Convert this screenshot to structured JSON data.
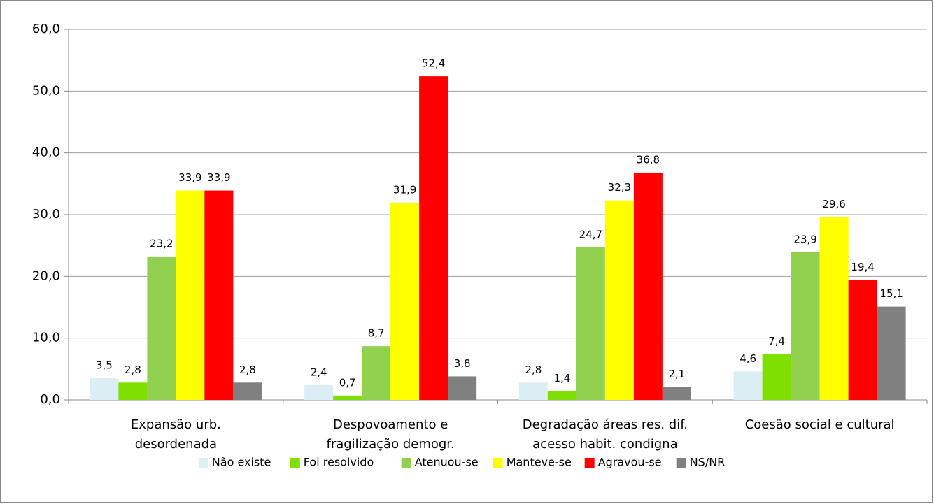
{
  "chart_data": {
    "type": "bar",
    "categories": [
      "Expansão urb.\ndesordenada",
      "Despovoamento e\nfragilização demogr.",
      "Degradação áreas res. dif.\nacesso habit. condigna",
      "Coesão social e cultural"
    ],
    "series": [
      {
        "name": "Não existe",
        "color": "#dbeef4",
        "values": [
          3.5,
          2.4,
          2.8,
          4.6
        ],
        "value_labels": [
          "3,5",
          "2,4",
          "2,8",
          "4,6"
        ]
      },
      {
        "name": "Foi resolvido",
        "color": "#7fe000",
        "values": [
          2.8,
          0.7,
          1.4,
          7.4
        ],
        "value_labels": [
          "2,8",
          "0,7",
          "1,4",
          "7,4"
        ]
      },
      {
        "name": "Atenuou-se",
        "color": "#92d050",
        "values": [
          23.2,
          8.7,
          24.7,
          23.9
        ],
        "value_labels": [
          "23,2",
          "8,7",
          "24,7",
          "23,9"
        ]
      },
      {
        "name": "Manteve-se",
        "color": "#ffff00",
        "values": [
          33.9,
          31.9,
          32.3,
          29.6
        ],
        "value_labels": [
          "33,9",
          "31,9",
          "32,3",
          "29,6"
        ]
      },
      {
        "name": "Agravou-se",
        "color": "#ff0000",
        "values": [
          33.9,
          52.4,
          36.8,
          19.4
        ],
        "value_labels": [
          "33,9",
          "52,4",
          "36,8",
          "19,4"
        ]
      },
      {
        "name": "NS/NR",
        "color": "#808080",
        "values": [
          2.8,
          3.8,
          2.1,
          15.1
        ],
        "value_labels": [
          "2,8",
          "3,8",
          "2,1",
          "15,1"
        ]
      }
    ],
    "ylim": [
      0,
      60
    ],
    "yticks": [
      {
        "value": 0,
        "label": "0,0"
      },
      {
        "value": 10,
        "label": "10,0"
      },
      {
        "value": 20,
        "label": "20,0"
      },
      {
        "value": 30,
        "label": "30,0"
      },
      {
        "value": 40,
        "label": "40,0"
      },
      {
        "value": 50,
        "label": "50,0"
      },
      {
        "value": 60,
        "label": "60,0"
      }
    ],
    "grid": true,
    "legend": "bottom"
  }
}
